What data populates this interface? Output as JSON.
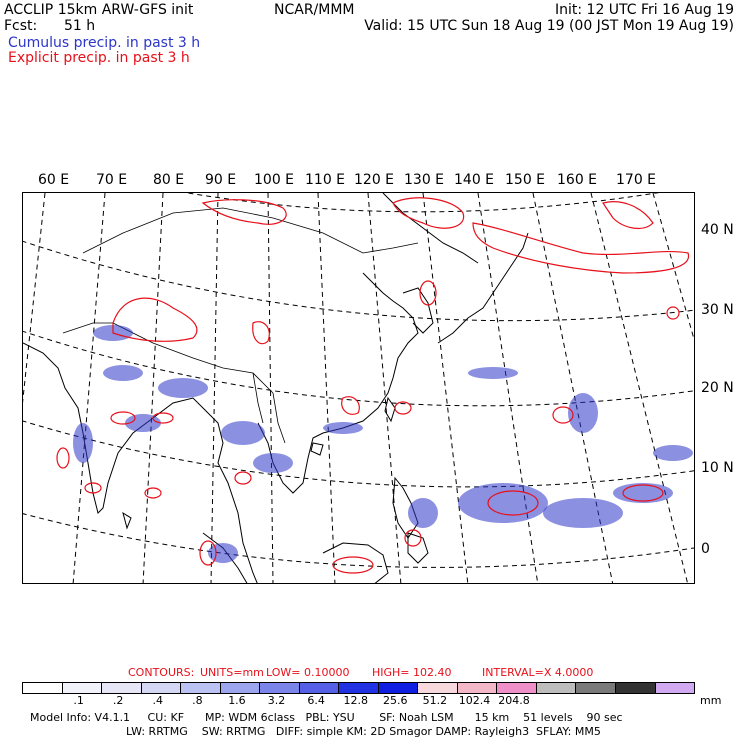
{
  "header": {
    "model": "ACCLIP 15km ARW-GFS init",
    "fcst_label": "Fcst:",
    "fcst_value": "51 h",
    "org": "NCAR/MMM",
    "init": "Init: 12 UTC Fri 16 Aug 19",
    "valid": "Valid: 15 UTC Sun 18 Aug 19 (00 JST Mon 19 Aug 19)",
    "cumulus_label": "Cumulus precip. in past 3 h",
    "explicit_label": "Explicit precip. in past 3 h"
  },
  "colors": {
    "cumulus": "#2b35c8",
    "explicit": "#e8101a"
  },
  "map": {
    "lon_labels": [
      "60 E",
      "70 E",
      "80 E",
      "90 E",
      "100 E",
      "110 E",
      "120 E",
      "130 E",
      "140 E",
      "150 E",
      "160 E",
      "170 E"
    ],
    "lat_labels": [
      "40 N",
      "30 N",
      "20 N",
      "10 N",
      "0"
    ]
  },
  "contours": {
    "contours_label": "CONTOURS:",
    "units": "UNITS=mm",
    "low": "LOW= 0.10000",
    "high": "HIGH= 102.40",
    "interval": "INTERVAL=X 4.0000"
  },
  "colorbar": {
    "colors": [
      "#ffffff",
      "#f2f2fb",
      "#e6e6f7",
      "#d4d8f4",
      "#bac3f1",
      "#9ca6ee",
      "#7c86ea",
      "#5560e6",
      "#2232e3",
      "#0f1ee0",
      "#f7d8dc",
      "#f2b8c8",
      "#f090c8",
      "#bdbdbd",
      "#7a7a7a",
      "#333333",
      "#d2aaf2"
    ],
    "labels": [
      ".1",
      ".2",
      ".4",
      ".8",
      "1.6",
      "3.2",
      "6.4",
      "12.8",
      "25.6",
      "51.2",
      "102.4",
      "204.8"
    ],
    "units": "mm"
  },
  "footer": {
    "line1": "Model Info: V4.1.1     CU: KF      MP: WDM 6class   PBL: YSU       SF: Noah LSM      15 km    51 levels    90 sec",
    "line2": "LW: RRTMG    SW: RRTMG   DIFF: simple KM: 2D Smagor DAMP: Rayleigh3  SFLAY: MM5"
  }
}
